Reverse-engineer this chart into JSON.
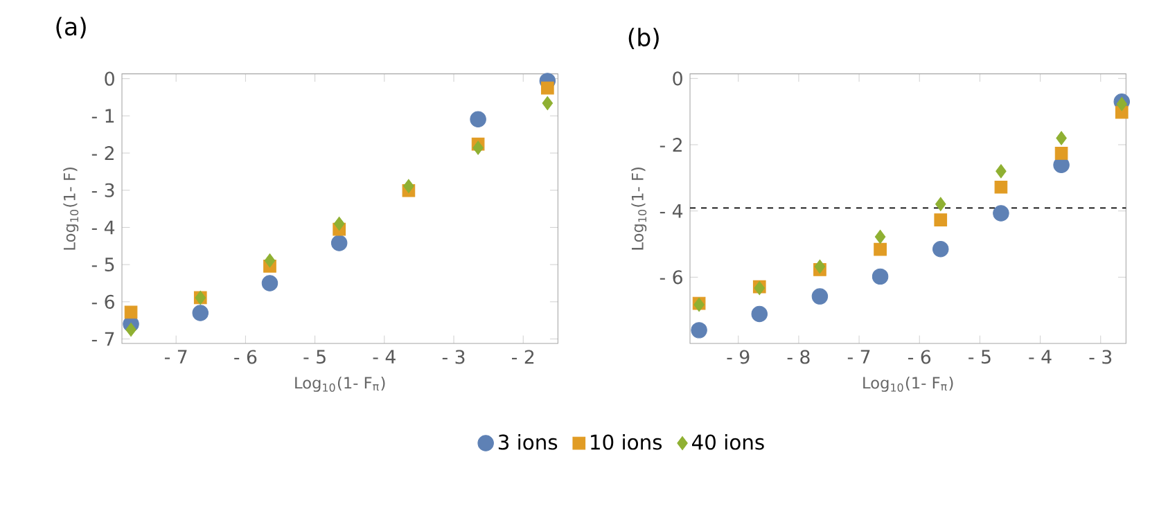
{
  "chart_data": [
    {
      "type": "scatter",
      "title": "(a)",
      "xlabel": "Log$_{10}$(1- F$_{π}$)",
      "ylabel": "Log$_{10}$(1- F)",
      "x": [
        -7.65,
        -6.65,
        -5.65,
        -4.65,
        -3.65,
        -2.65,
        -1.65
      ],
      "xlim": [
        -7.78,
        -1.5
      ],
      "ylim": [
        -7.12,
        0.13
      ],
      "xticks": [
        {
          "value": -7,
          "label": "- 7"
        },
        {
          "value": -6,
          "label": "- 6"
        },
        {
          "value": -5,
          "label": "- 5"
        },
        {
          "value": -4,
          "label": "- 4"
        },
        {
          "value": -3,
          "label": "- 3"
        },
        {
          "value": -2,
          "label": "- 2"
        }
      ],
      "yticks": [
        0,
        {
          "value": -1,
          "label": "- 1"
        },
        {
          "value": -2,
          "label": "- 2"
        },
        {
          "value": -3,
          "label": "- 3"
        },
        {
          "value": -4,
          "label": "- 4"
        },
        {
          "value": -5,
          "label": "- 5"
        },
        {
          "value": -6,
          "label": "- 6"
        },
        {
          "value": -7,
          "label": "- 7"
        }
      ],
      "legend": "bottom",
      "series": [
        {
          "name": "3 ions",
          "color": "#5e81b5",
          "marker": "circle",
          "values": [
            -6.6,
            -6.3,
            -5.5,
            -4.42,
            null,
            -1.09,
            -0.06
          ]
        },
        {
          "name": "10 ions",
          "color": "#e19c24",
          "marker": "square",
          "values": [
            -6.28,
            -5.89,
            -5.04,
            -4.05,
            -3.01,
            -1.76,
            -0.25
          ]
        },
        {
          "name": "40 ions",
          "color": "#8fb032",
          "marker": "diamond",
          "values": [
            -6.75,
            -5.89,
            -4.89,
            -3.9,
            -2.89,
            -1.86,
            -0.66
          ]
        }
      ]
    },
    {
      "type": "scatter",
      "title": "(b)",
      "xlabel": "Log$_{10}$(1- F$_{π}$)",
      "ylabel": "Log$_{10}$(1- F)",
      "x": [
        -9.65,
        -8.65,
        -7.65,
        -6.65,
        -5.65,
        -4.65,
        -3.65,
        -2.65
      ],
      "xlim": [
        -9.8,
        -2.58
      ],
      "ylim": [
        -8.0,
        0.14
      ],
      "xticks": [
        {
          "value": -9,
          "label": "- 9"
        },
        {
          "value": -8,
          "label": "- 8"
        },
        {
          "value": -7,
          "label": "- 7"
        },
        {
          "value": -6,
          "label": "- 6"
        },
        {
          "value": -5,
          "label": "- 5"
        },
        {
          "value": -4,
          "label": "- 4"
        },
        {
          "value": -3,
          "label": "- 3"
        }
      ],
      "yticks": [
        0,
        {
          "value": -2,
          "label": "- 2"
        },
        {
          "value": -4,
          "label": "- 4"
        },
        {
          "value": -6,
          "label": "- 6"
        }
      ],
      "ref_lines": [
        {
          "axis": "y",
          "value": -3.91,
          "color": "#000000",
          "line_style": "dashed"
        }
      ],
      "series": [
        {
          "color": "#5e81b5",
          "marker": "circle",
          "values": [
            -7.6,
            -7.11,
            -6.58,
            -5.98,
            -5.15,
            -4.07,
            -2.61,
            -0.7
          ]
        },
        {
          "color": "#e19c24",
          "marker": "square",
          "values": [
            -6.79,
            -6.29,
            -5.77,
            -5.16,
            -4.27,
            -3.28,
            -2.26,
            -1.02
          ]
        },
        {
          "color": "#8fb032",
          "marker": "diamond",
          "values": [
            -6.83,
            -6.33,
            -5.68,
            -4.78,
            -3.79,
            -2.8,
            -1.8,
            -0.77
          ]
        }
      ]
    }
  ]
}
